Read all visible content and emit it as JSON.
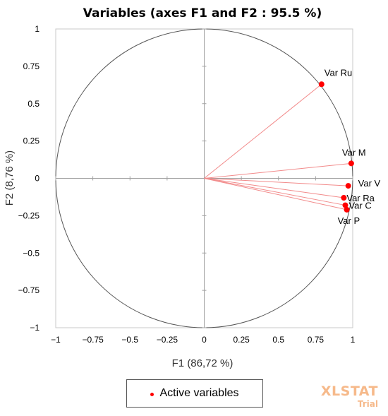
{
  "chart_data": {
    "type": "scatter",
    "title": "Variables (axes F1 and F2 : 95.5 %)",
    "xlabel": "F1 (86,72 %)",
    "ylabel": "F2 (8,76 %)",
    "xlim": [
      -1,
      1
    ],
    "ylim": [
      -1,
      1
    ],
    "x_ticks": [
      "−1",
      "−0.75",
      "−0.5",
      "−0.25",
      "0",
      "0.25",
      "0.5",
      "0.75",
      "1"
    ],
    "y_ticks": [
      "1",
      "0.75",
      "0.5",
      "0.25",
      "0",
      "−0.25",
      "−0.5",
      "−0.75",
      "−1"
    ],
    "x_tick_values": [
      -1,
      -0.75,
      -0.5,
      -0.25,
      0,
      0.25,
      0.5,
      0.75,
      1
    ],
    "y_tick_values": [
      1,
      0.75,
      0.5,
      0.25,
      0,
      -0.25,
      -0.5,
      -0.75,
      -1
    ],
    "unit_circle": true,
    "vectors_from_origin": true,
    "grid": false,
    "legend_position": "bottom",
    "series": [
      {
        "name": "Active variables",
        "color": "#ff0000",
        "line_color": "#f28b8b",
        "points": [
          {
            "label": "Var Ru",
            "x": 0.79,
            "y": 0.63
          },
          {
            "label": "Var M",
            "x": 0.99,
            "y": 0.1
          },
          {
            "label": "Var V",
            "x": 0.97,
            "y": -0.05
          },
          {
            "label": "Var Ra",
            "x": 0.94,
            "y": -0.13
          },
          {
            "label": "Var C",
            "x": 0.95,
            "y": -0.18
          },
          {
            "label": "Var P",
            "x": 0.96,
            "y": -0.21
          }
        ]
      }
    ]
  },
  "watermark": {
    "brand": "XLSTAT",
    "sub": "Trial",
    "color": "#f6b98a"
  }
}
